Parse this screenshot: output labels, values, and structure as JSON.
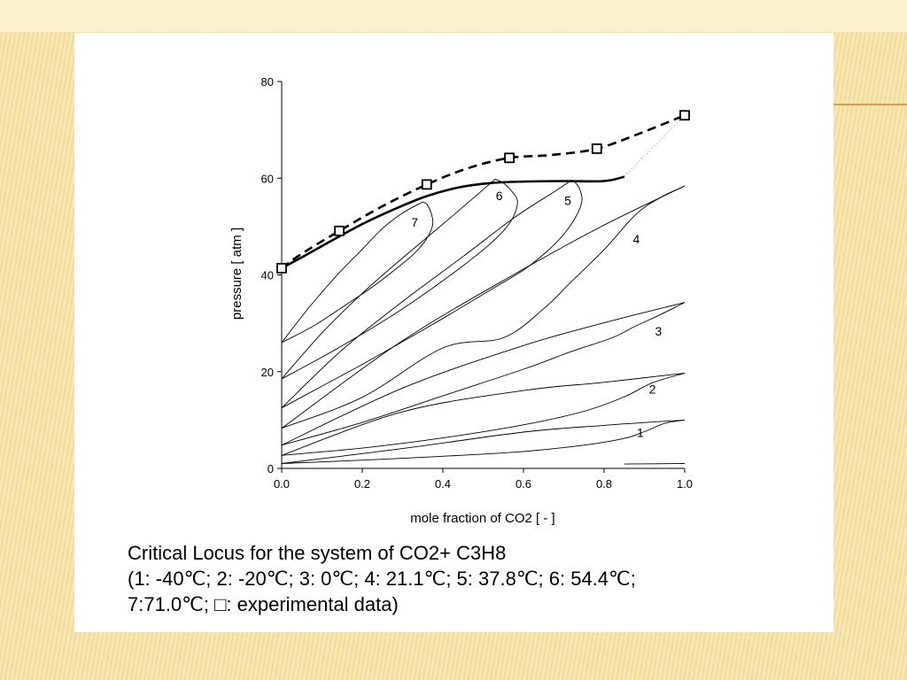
{
  "slide": {
    "caption_line1": "Critical Locus for the system of CO2+ C3H8",
    "caption_line2": "(1: -40℃; 2: -20℃; 3: 0℃; 4: 21.1℃; 5: 37.8℃; 6: 54.4℃;",
    "caption_line3": "7:71.0℃; □: experimental data)"
  },
  "chart_data": {
    "type": "line",
    "xlabel": "mole fraction of CO2 [ - ]",
    "ylabel": "pressure [ atm ]",
    "xlim": [
      0,
      1
    ],
    "ylim": [
      0,
      80
    ],
    "xticks": [
      0.0,
      0.2,
      0.4,
      0.6,
      0.8,
      1.0
    ],
    "xtick_labels": [
      "0.0",
      "0.2",
      "0.4",
      "0.6",
      "0.8",
      "1.0"
    ],
    "yticks": [
      0,
      20,
      40,
      60,
      80
    ],
    "ytick_labels": [
      "0",
      "20",
      "40",
      "60",
      "80"
    ],
    "grid": false,
    "experimental_points": {
      "x": [
        0.0,
        0.143,
        0.36,
        0.565,
        0.782,
        1.0
      ],
      "y": [
        41.4,
        49.1,
        58.7,
        64.2,
        66.1,
        73.0
      ]
    },
    "dashed_fit": {
      "x": [
        0.0,
        0.05,
        0.143,
        0.25,
        0.36,
        0.46,
        0.565,
        0.67,
        0.782,
        0.89,
        1.0
      ],
      "y": [
        41.4,
        44.4,
        49.1,
        54.2,
        58.7,
        62.0,
        64.2,
        64.8,
        66.1,
        69.3,
        73.0
      ]
    },
    "critical_locus": {
      "x": [
        0.0,
        0.06,
        0.12,
        0.2,
        0.28,
        0.36,
        0.44,
        0.52,
        0.6,
        0.7,
        0.8,
        0.85
      ],
      "y": [
        41.4,
        44.1,
        46.9,
        50.5,
        53.6,
        56.3,
        58.1,
        59.0,
        59.3,
        59.4,
        59.4,
        60.3
      ]
    },
    "isotherms": [
      {
        "label": "1",
        "label_x": 0.89,
        "label_y": 6.5,
        "bubble": {
          "x": [
            0.0,
            0.2,
            0.4,
            0.6,
            0.75,
            0.85,
            0.9,
            0.95,
            1.0
          ],
          "y": [
            1.0,
            1.7,
            2.5,
            3.5,
            4.8,
            6.2,
            7.6,
            9.3,
            10.0
          ]
        },
        "dew": {
          "x": [
            0.0,
            0.3,
            0.6,
            0.8,
            1.0
          ],
          "y": [
            1.0,
            4.1,
            7.5,
            8.9,
            10.0
          ]
        }
      },
      {
        "label": "2",
        "label_x": 0.92,
        "label_y": 15.5,
        "bubble": {
          "x": [
            0.0,
            0.2,
            0.4,
            0.6,
            0.75,
            0.85,
            0.92,
            1.0
          ],
          "y": [
            2.7,
            4.2,
            6.3,
            9.0,
            11.8,
            14.8,
            17.7,
            19.7
          ]
        },
        "dew": {
          "x": [
            0.0,
            0.3,
            0.6,
            0.8,
            1.0
          ],
          "y": [
            2.7,
            11.7,
            16.1,
            17.8,
            19.7
          ]
        }
      },
      {
        "label": "3",
        "label_x": 0.935,
        "label_y": 27.5,
        "bubble": {
          "x": [
            0.0,
            0.2,
            0.4,
            0.6,
            0.72,
            0.82,
            0.88,
            0.94,
            1.0
          ],
          "y": [
            4.8,
            9.5,
            15.0,
            20.5,
            24.2,
            27.0,
            29.5,
            31.8,
            34.3
          ]
        },
        "dew": {
          "x": [
            0.0,
            0.3,
            0.6,
            0.8,
            1.0
          ],
          "y": [
            4.8,
            16.6,
            25.4,
            30.1,
            34.3
          ]
        }
      },
      {
        "label": "4",
        "label_x": 0.88,
        "label_y": 46.5,
        "bubble": {
          "x": [
            0.0,
            0.2,
            0.4,
            0.55,
            0.65,
            0.72,
            0.8,
            0.88,
            0.94,
            1.0
          ],
          "y": [
            8.3,
            14.7,
            24.9,
            27.0,
            33.0,
            38.7,
            45.2,
            52.6,
            56.0,
            58.4
          ]
        },
        "dew": {
          "x": [
            0.0,
            0.3,
            0.6,
            0.8,
            1.0
          ],
          "y": [
            8.3,
            26.4,
            41.2,
            50.3,
            58.4
          ]
        }
      },
      {
        "label": "5",
        "label_x": 0.71,
        "label_y": 54.5,
        "bubble": {
          "x": [
            0.0,
            0.1,
            0.2,
            0.3,
            0.4,
            0.5,
            0.6,
            0.66,
            0.7,
            0.73,
            0.745,
            0.74,
            0.73,
            0.72
          ],
          "y": [
            12.5,
            17.0,
            21.5,
            26.2,
            31.0,
            36.0,
            41.0,
            45.0,
            48.4,
            52.0,
            55.3,
            57.6,
            59.0,
            59.6
          ]
        },
        "dew": {
          "x": [
            0.0,
            0.15,
            0.3,
            0.45,
            0.58,
            0.68,
            0.72
          ],
          "y": [
            12.5,
            24.5,
            34.5,
            43.8,
            52.0,
            57.4,
            59.6
          ]
        }
      },
      {
        "label": "6",
        "label_x": 0.54,
        "label_y": 55.5,
        "bubble": {
          "x": [
            0.0,
            0.1,
            0.2,
            0.3,
            0.38,
            0.45,
            0.51,
            0.55,
            0.575,
            0.585,
            0.57,
            0.55,
            0.53
          ],
          "y": [
            18.5,
            23.0,
            27.8,
            33.0,
            37.6,
            41.9,
            45.9,
            49.1,
            52.0,
            55.3,
            57.4,
            59.0,
            59.8
          ]
        },
        "dew": {
          "x": [
            0.0,
            0.1,
            0.2,
            0.3,
            0.4,
            0.47,
            0.53
          ],
          "y": [
            18.5,
            28.0,
            36.2,
            43.5,
            50.5,
            55.5,
            59.8
          ]
        }
      },
      {
        "label": "7",
        "label_x": 0.33,
        "label_y": 50.0,
        "bubble": {
          "x": [
            0.0,
            0.08,
            0.15,
            0.22,
            0.28,
            0.33,
            0.36,
            0.375,
            0.37,
            0.36,
            0.35
          ],
          "y": [
            26.0,
            29.5,
            33.3,
            37.2,
            41.0,
            44.5,
            47.5,
            50.5,
            53.0,
            54.6,
            55.1
          ]
        },
        "dew": {
          "x": [
            0.0,
            0.07,
            0.14,
            0.2,
            0.25,
            0.3,
            0.35
          ],
          "y": [
            26.0,
            33.5,
            40.2,
            45.3,
            49.6,
            52.8,
            55.1
          ]
        }
      }
    ],
    "pure_co2_vapor_segment": {
      "x": [
        0.85,
        1.0
      ],
      "y": [
        0.9,
        1.0
      ]
    }
  }
}
